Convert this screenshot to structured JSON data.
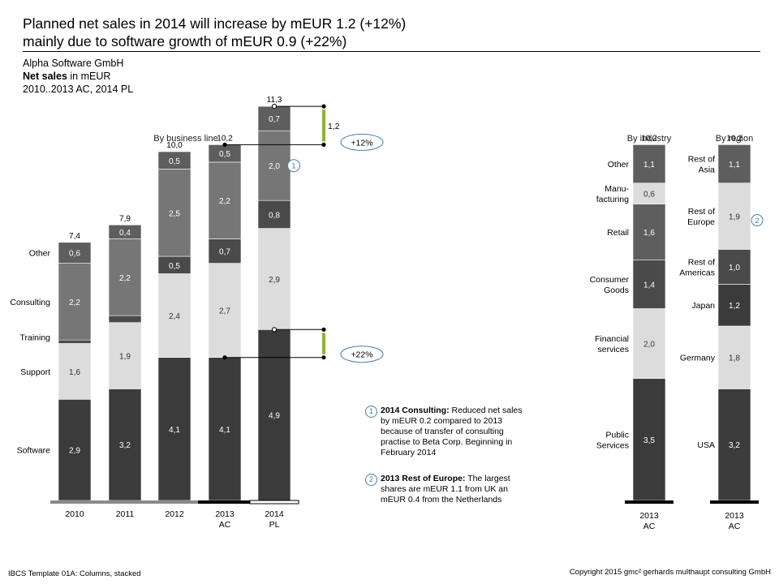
{
  "header": {
    "headline_line1": "Planned net sales in 2014 will increase by mEUR 1.2 (+12%)",
    "headline_line2": "mainly due to software growth of mEUR 0.9 (+22%)",
    "company": "Alpha Software GmbH",
    "measure_bold": "Net sales",
    "measure_rest": " in mEUR",
    "period": "2010..2013 AC, 2014 PL"
  },
  "notes": [
    {
      "marker": "1",
      "title": "2014 Consulting:",
      "text": " Reduced net sales by mEUR 0.2 compared to 2013 because of transfer of consulting practise to Beta Corp. Beginning in February 2014"
    },
    {
      "marker": "2",
      "title": "2013 Rest of Europe:",
      "text": " The largest shares are mEUR 1.1 from UK an mEUR 0.4 from the Netherlands"
    }
  ],
  "footer": {
    "left": "IBCS Template 01A: Columns, stacked",
    "right": "Copyright 2015 gmc² gerhards multhaupt consulting GmbH"
  },
  "colors": {
    "software": "#3b3b3b",
    "support": "#dcdcdc",
    "training": "#4a4a4a",
    "consulting": "#767676",
    "other": "#5e5e5e",
    "increase_bar": "#8db33a",
    "marker_outline": "#4a7fb0"
  },
  "chart_data": [
    {
      "type": "bar",
      "stacked": true,
      "title": "By business line",
      "categories": [
        "2010",
        "2011",
        "2012",
        "2013 AC",
        "2014 PL"
      ],
      "category_lines": [
        [
          "2010"
        ],
        [
          "2011"
        ],
        [
          "2012"
        ],
        [
          "2013",
          "AC"
        ],
        [
          "2014",
          "PL"
        ]
      ],
      "totals": [
        "7,4",
        "7,9",
        "10,0",
        "10,2",
        "11,3"
      ],
      "series": [
        {
          "name": "Software",
          "values": [
            2.9,
            3.2,
            4.1,
            4.1,
            4.9
          ],
          "labels": [
            "2,9",
            "3,2",
            "4,1",
            "4,1",
            "4,9"
          ]
        },
        {
          "name": "Support",
          "values": [
            1.6,
            1.9,
            2.4,
            2.7,
            2.9
          ],
          "labels": [
            "1,6",
            "1,9",
            "2,4",
            "2,7",
            "2,9"
          ]
        },
        {
          "name": "Training",
          "values": [
            0.1,
            0.2,
            0.5,
            0.7,
            0.8
          ],
          "labels": [
            "",
            "",
            "0,5",
            "0,7",
            "0,8"
          ]
        },
        {
          "name": "Consulting",
          "values": [
            2.2,
            2.2,
            2.5,
            2.2,
            2.0
          ],
          "labels": [
            "2,2",
            "2,2",
            "2,5",
            "2,2",
            "2,0"
          ]
        },
        {
          "name": "Other",
          "values": [
            0.6,
            0.4,
            0.5,
            0.5,
            0.7
          ],
          "labels": [
            "0,6",
            "0,4",
            "0,5",
            "0,5",
            "0,7"
          ]
        }
      ],
      "comment_markers": [
        {
          "category": "2014 PL",
          "series": "Consulting",
          "marker": "1"
        }
      ],
      "variances": [
        {
          "label": "1,2",
          "badge": "+12%",
          "from": 10.2,
          "to": 11.3
        },
        {
          "label": "",
          "badge": "+22%",
          "from": 4.1,
          "to": 4.9
        }
      ]
    },
    {
      "type": "bar",
      "stacked": true,
      "title": "By industry",
      "categories": [
        "2013 AC"
      ],
      "category_lines": [
        [
          "2013",
          "AC"
        ]
      ],
      "totals": [
        "10,2"
      ],
      "series": [
        {
          "name": "Public Services",
          "values": [
            3.5
          ],
          "labels": [
            "3,5"
          ]
        },
        {
          "name": "Financial services",
          "values": [
            2.0
          ],
          "labels": [
            "2,0"
          ]
        },
        {
          "name": "Consumer Goods",
          "values": [
            1.4
          ],
          "labels": [
            "1,4"
          ]
        },
        {
          "name": "Retail",
          "values": [
            1.6
          ],
          "labels": [
            "1,6"
          ]
        },
        {
          "name": "Manu-facturing",
          "values": [
            0.6
          ],
          "labels": [
            "0,6"
          ]
        },
        {
          "name": "Other",
          "values": [
            1.1
          ],
          "labels": [
            "1,1"
          ]
        }
      ]
    },
    {
      "type": "bar",
      "stacked": true,
      "title": "By region",
      "categories": [
        "2013 AC"
      ],
      "category_lines": [
        [
          "2013",
          "AC"
        ]
      ],
      "totals": [
        "10,2"
      ],
      "series": [
        {
          "name": "USA",
          "values": [
            3.2
          ],
          "labels": [
            "3,2"
          ]
        },
        {
          "name": "Germany",
          "values": [
            1.8
          ],
          "labels": [
            "1,8"
          ]
        },
        {
          "name": "Japan",
          "values": [
            1.2
          ],
          "labels": [
            "1,2"
          ]
        },
        {
          "name": "Rest of Americas",
          "values": [
            1.0
          ],
          "labels": [
            "1,0"
          ]
        },
        {
          "name": "Rest of Europe",
          "values": [
            1.9
          ],
          "labels": [
            "1,9"
          ]
        },
        {
          "name": "Rest of Asia",
          "values": [
            1.1
          ],
          "labels": [
            "1,1"
          ]
        }
      ],
      "comment_markers": [
        {
          "category": "2013 AC",
          "series": "Rest of Europe",
          "marker": "2"
        }
      ]
    }
  ]
}
